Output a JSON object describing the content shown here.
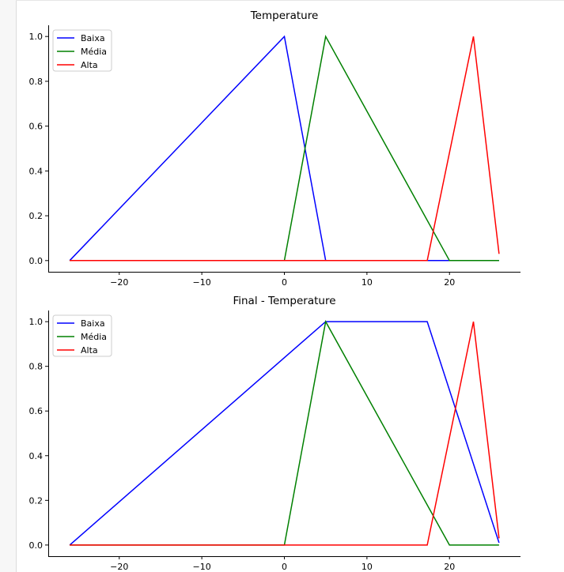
{
  "chart_data": [
    {
      "type": "line",
      "title": "Temperature",
      "xlim": [
        -28.6,
        28.6
      ],
      "ylim": [
        -0.05,
        1.05
      ],
      "xticks": [
        -20,
        -10,
        0,
        10,
        20
      ],
      "yticks": [
        0.0,
        0.2,
        0.4,
        0.6,
        0.8,
        1.0
      ],
      "xtick_labels": [
        "−20",
        "−10",
        "0",
        "10",
        "20"
      ],
      "ytick_labels": [
        "0.0",
        "0.2",
        "0.4",
        "0.6",
        "0.8",
        "1.0"
      ],
      "legend_position": "upper left",
      "series": [
        {
          "name": "Baixa",
          "color": "#0000ff",
          "x": [
            -26,
            0,
            5,
            26
          ],
          "y": [
            0,
            1,
            0,
            0
          ]
        },
        {
          "name": "Média",
          "color": "#008000",
          "x": [
            -26,
            0,
            5,
            20,
            26
          ],
          "y": [
            0,
            0,
            1,
            0,
            0
          ]
        },
        {
          "name": "Alta",
          "color": "#ff0000",
          "x": [
            -26,
            17.3,
            22.9,
            26
          ],
          "y": [
            0,
            0,
            1,
            0.03
          ]
        }
      ]
    },
    {
      "type": "line",
      "title": "Final - Temperature",
      "xlim": [
        -28.6,
        28.6
      ],
      "ylim": [
        -0.05,
        1.05
      ],
      "xticks": [
        -20,
        -10,
        0,
        10,
        20
      ],
      "yticks": [
        0.0,
        0.2,
        0.4,
        0.6,
        0.8,
        1.0
      ],
      "xtick_labels": [
        "−20",
        "−10",
        "0",
        "10",
        "20"
      ],
      "ytick_labels": [
        "0.0",
        "0.2",
        "0.4",
        "0.6",
        "0.8",
        "1.0"
      ],
      "legend_position": "upper left",
      "series": [
        {
          "name": "Baixa",
          "color": "#0000ff",
          "x": [
            -26,
            5,
            17.3,
            26
          ],
          "y": [
            0,
            1,
            1,
            0.01
          ]
        },
        {
          "name": "Média",
          "color": "#008000",
          "x": [
            -26,
            0,
            5,
            20,
            26
          ],
          "y": [
            0,
            0,
            1,
            0,
            0
          ]
        },
        {
          "name": "Alta",
          "color": "#ff0000",
          "x": [
            -26,
            17.3,
            22.9,
            26
          ],
          "y": [
            0,
            0,
            1,
            0.03
          ]
        }
      ]
    }
  ]
}
